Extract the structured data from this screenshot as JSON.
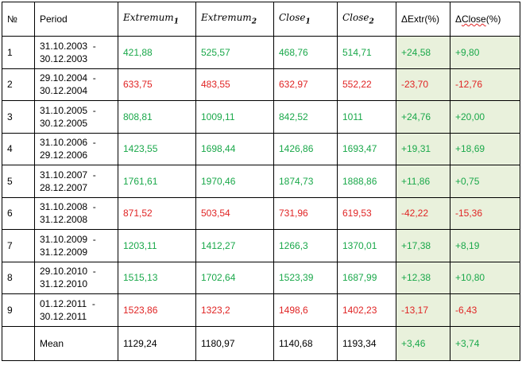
{
  "table": {
    "headers": {
      "no": "№",
      "period": "Period",
      "extremum1_base": "Extremum",
      "extremum1_sub": "1",
      "extremum2_base": "Extremum",
      "extremum2_sub": "2",
      "close1_base": "Close",
      "close1_sub": "1",
      "close2_base": "Close",
      "close2_sub": "2",
      "delta_extr": "ΔExtr(%)",
      "delta_close_prefix": "Δ",
      "delta_close_word": "Close",
      "delta_close_suffix": "(%)"
    },
    "rows": [
      {
        "no": "1",
        "period_start": "31.10.2003  -",
        "period_end": "30.12.2003",
        "ext1": "421,88",
        "ext2": "525,57",
        "close1": "468,76",
        "close2": "514,71",
        "d_extr": "+24,58",
        "d_close": "+9,80",
        "trend": "up"
      },
      {
        "no": "2",
        "period_start": "29.10.2004  -",
        "period_end": "30.12.2004",
        "ext1": "633,75",
        "ext2": "483,55",
        "close1": "632,97",
        "close2": "552,22",
        "d_extr": "-23,70",
        "d_close": "-12,76",
        "trend": "down"
      },
      {
        "no": "3",
        "period_start": "31.10.2005  -",
        "period_end": "30.12.2005",
        "ext1": "808,81",
        "ext2": "1009,11",
        "close1": "842,52",
        "close2": "1011",
        "d_extr": "+24,76",
        "d_close": "+20,00",
        "trend": "up"
      },
      {
        "no": "4",
        "period_start": "31.10.2006  -",
        "period_end": "29.12.2006",
        "ext1": "1423,55",
        "ext2": "1698,44",
        "close1": "1426,86",
        "close2": "1693,47",
        "d_extr": "+19,31",
        "d_close": "+18,69",
        "trend": "up"
      },
      {
        "no": "5",
        "period_start": "31.10.2007  -",
        "period_end": "28.12.2007",
        "ext1": "1761,61",
        "ext2": "1970,46",
        "close1": "1874,73",
        "close2": "1888,86",
        "d_extr": "+11,86",
        "d_close": "+0,75",
        "trend": "up"
      },
      {
        "no": "6",
        "period_start": "31.10.2008  -",
        "period_end": "31.12.2008",
        "ext1": "871,52",
        "ext2": "503,54",
        "close1": "731,96",
        "close2": "619,53",
        "d_extr": "-42,22",
        "d_close": "-15,36",
        "trend": "down"
      },
      {
        "no": "7",
        "period_start": "31.10.2009  -",
        "period_end": "31.12.2009",
        "ext1": "1203,11",
        "ext2": "1412,27",
        "close1": "1266,3",
        "close2": "1370,01",
        "d_extr": "+17,38",
        "d_close": "+8,19",
        "trend": "up"
      },
      {
        "no": "8",
        "period_start": "29.10.2010  -",
        "period_end": "31.12.2010",
        "ext1": "1515,13",
        "ext2": "1702,64",
        "close1": "1523,39",
        "close2": "1687,99",
        "d_extr": "+12,38",
        "d_close": "+10,80",
        "trend": "up"
      },
      {
        "no": "9",
        "period_start": "01.12.2011  -",
        "period_end": "30.12.2011",
        "ext1": "1523,86",
        "ext2": "1323,2",
        "close1": "1498,6",
        "close2": "1402,23",
        "d_extr": "-13,17",
        "d_close": "-6,43",
        "trend": "down"
      }
    ],
    "mean": {
      "label": "Mean",
      "ext1": "1129,24",
      "ext2": "1180,97",
      "close1": "1140,68",
      "close2": "1193,34",
      "d_extr": "+3,46",
      "d_close": "+3,74"
    },
    "colors": {
      "up": "#1aa84a",
      "down": "#e02424",
      "delta_background": "#e9f1dc"
    }
  }
}
